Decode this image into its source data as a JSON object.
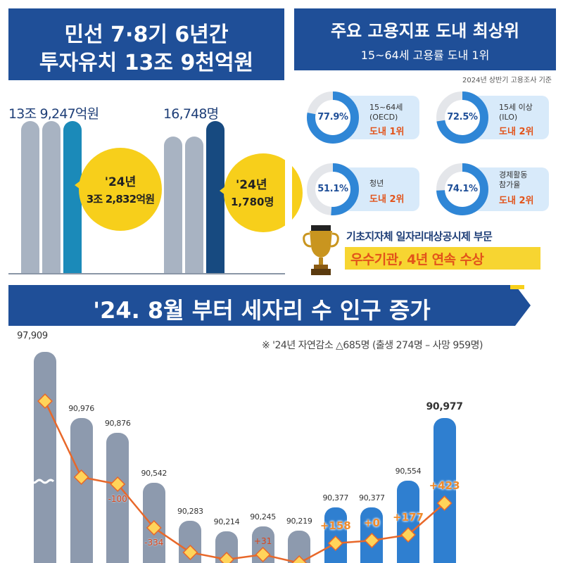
{
  "invest": {
    "title_line1": "민선 7·8기 6년간",
    "title_line2": "투자유치 13조 9천억원",
    "total": "13조 9,247억원",
    "bubble_year": "'24년",
    "bubble_amount": "3조 2,832억원"
  },
  "jobs": {
    "total": "16,748명",
    "bubble_year": "'24년",
    "bubble_amount": "1,780명"
  },
  "employment": {
    "title": "주요 고용지표 도내 최상위",
    "subtitle": "15~64세 고용률 도내 1위",
    "source_note": "2024년 상반기 고용조사 기준",
    "donuts": [
      {
        "pct_label": "77.9%",
        "value": 77.9,
        "desc1": "15~64세",
        "desc2": "(OECD)",
        "rank": "도내 1위"
      },
      {
        "pct_label": "72.5%",
        "value": 72.5,
        "desc1": "15세 이상",
        "desc2": "(ILO)",
        "rank": "도내 2위"
      },
      {
        "pct_label": "51.1%",
        "value": 51.1,
        "desc1": "청년",
        "desc2": "",
        "rank": "도내 2위"
      },
      {
        "pct_label": "74.1%",
        "value": 74.1,
        "desc1": "경제활동",
        "desc2": "참가율",
        "rank": "도내 2위"
      }
    ]
  },
  "award": {
    "line1": "기초지자체 일자리대상공시제 부문",
    "line2": "우수기관, 4년 연속 수상"
  },
  "population": {
    "title": "'24. 8월 부터 세자리 수 인구 증가",
    "note": "※ '24년 자연감소 △685명 (출생 274명 – 사망 959명)"
  },
  "chart_data": {
    "type": "bar",
    "title": "'24. 8월 부터 세자리 수 인구 증가",
    "axis_break": true,
    "series": [
      {
        "values": [
          97909,
          90976,
          90876,
          90542,
          90283,
          90214,
          90245,
          90219,
          90377,
          90377,
          90554,
          90977
        ],
        "labels": [
          "97,909",
          "90,976",
          "90,876",
          "90,542",
          "90,283",
          "90,214",
          "90,245",
          "90,219",
          "90,377",
          "90,377",
          "90,554",
          "90,977"
        ],
        "highlight_from_index": 8
      },
      {
        "type": "line",
        "change_labels": [
          "",
          "",
          "-100",
          "-334",
          "",
          "",
          "+31",
          "",
          "+158",
          "+0",
          "+177",
          "+423"
        ],
        "change_values": [
          null,
          null,
          -100,
          -334,
          null,
          null,
          31,
          null,
          158,
          0,
          177,
          423
        ]
      }
    ]
  },
  "colors": {
    "banner": "#1f4f98",
    "gray_bar": "#a8b3c2",
    "teal_bar": "#1b8ab9",
    "navy_bar": "#174a80",
    "blue_bar": "#2f7fd0",
    "bubble": "#f7cf1b",
    "line": "#e8682a",
    "marker": "#ffd45a",
    "rank": "#e2531a"
  }
}
